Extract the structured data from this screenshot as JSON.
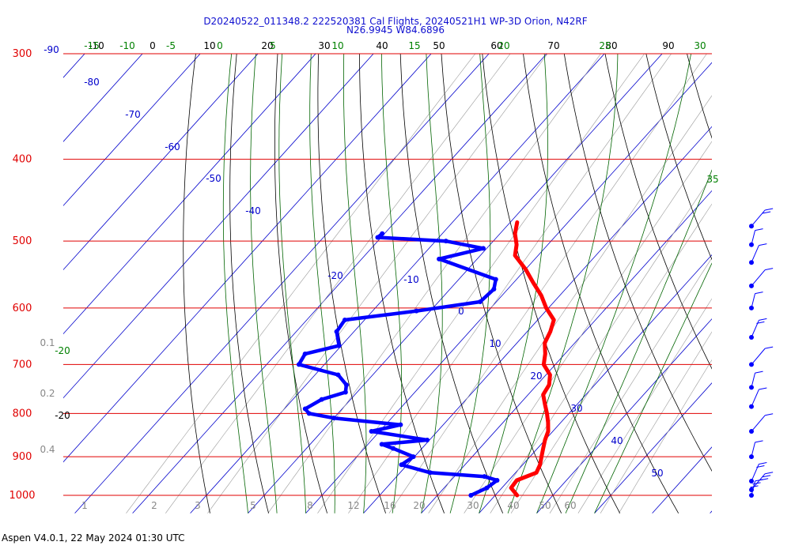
{
  "chart_data": {
    "type": "line",
    "subtype": "skew-t-log-p",
    "title": "D20240522_011348.2 222520381 Cal Flights, 20240521H1 WP-3D Orion, N42RF",
    "subtitle": "N26.9945 W84.6896",
    "footer": "Aspen V4.0.1, 22 May 2024  01:30 UTC",
    "pressure_range": [
      1050,
      300
    ],
    "isobars": [
      300,
      400,
      500,
      600,
      700,
      800,
      900,
      1000
    ],
    "isotherm_labels": [
      "-90",
      "-80",
      "-70",
      "-60",
      "-50",
      "-40",
      "-20",
      "-10",
      "0",
      "10",
      "20",
      "30",
      "40",
      "50"
    ],
    "isotherm_labels_left": [
      "-20",
      "-20"
    ],
    "top_temperature_labels": [
      "-10",
      "0",
      "10",
      "20",
      "30",
      "40",
      "50",
      "60",
      "70",
      "80",
      "90"
    ],
    "top_dewpoint_labels": [
      "-15",
      "-10",
      "-5",
      "0",
      "5",
      "10",
      "15",
      "20",
      "25",
      "30"
    ],
    "side_dewpoint_labels": [
      "35"
    ],
    "mixing_ratio_labels": [
      "1",
      "2",
      "3",
      "5",
      "8",
      "12",
      "16",
      "20",
      "30",
      "40",
      "50",
      "60"
    ],
    "mixing_ratio_left_labels": [
      "0.1",
      "0.2",
      "0.4"
    ],
    "colors": {
      "isobar": "#e00000",
      "temperature": "#ff0000",
      "dewpoint": "#0000ff",
      "isotherm": "#0000cc",
      "dry_adiabat": "#000000",
      "moist_adiabat": "#006400",
      "mixing_ratio": "#999999",
      "wind": "#0000ff"
    },
    "series": [
      {
        "name": "",
        "kind": "temperature",
        "points": [
          [
            1000,
            23.8
          ],
          [
            980,
            21.6
          ],
          [
            960,
            21.4
          ],
          [
            940,
            23.6
          ],
          [
            920,
            23.0
          ],
          [
            900,
            22.0
          ],
          [
            880,
            21.0
          ],
          [
            860,
            20.0
          ],
          [
            840,
            19.2
          ],
          [
            820,
            17.8
          ],
          [
            800,
            16.2
          ],
          [
            780,
            14.4
          ],
          [
            760,
            12.6
          ],
          [
            740,
            12.1
          ],
          [
            720,
            10.7
          ],
          [
            700,
            8.0
          ],
          [
            680,
            6.6
          ],
          [
            660,
            4.8
          ],
          [
            640,
            4.0
          ],
          [
            620,
            2.8
          ],
          [
            600,
            -0.4
          ],
          [
            580,
            -3.2
          ],
          [
            560,
            -6.6
          ],
          [
            540,
            -10.0
          ],
          [
            520,
            -14.0
          ],
          [
            505,
            -15.4
          ],
          [
            490,
            -17.4
          ],
          [
            475,
            -18.8
          ]
        ]
      },
      {
        "name": "",
        "kind": "dewpoint",
        "points": [
          [
            1000,
            15.8
          ],
          [
            980,
            17.4
          ],
          [
            960,
            18.0
          ],
          [
            950,
            15.2
          ],
          [
            940,
            5.2
          ],
          [
            920,
            -1.0
          ],
          [
            900,
            -0.2
          ],
          [
            880,
            -5.0
          ],
          [
            870,
            -7.6
          ],
          [
            860,
            -0.4
          ],
          [
            840,
            -11.4
          ],
          [
            825,
            -7.4
          ],
          [
            810,
            -20.0
          ],
          [
            800,
            -25.0
          ],
          [
            790,
            -26.4
          ],
          [
            770,
            -25.0
          ],
          [
            755,
            -22.0
          ],
          [
            740,
            -23.0
          ],
          [
            720,
            -26.0
          ],
          [
            700,
            -34.4
          ],
          [
            680,
            -35.0
          ],
          [
            665,
            -30.4
          ],
          [
            640,
            -33.0
          ],
          [
            620,
            -33.4
          ],
          [
            605,
            -22.4
          ],
          [
            590,
            -12.8
          ],
          [
            570,
            -12.4
          ],
          [
            555,
            -13.6
          ],
          [
            525,
            -26.6
          ],
          [
            510,
            -20.6
          ],
          [
            500,
            -28.2
          ],
          [
            495,
            -40.6
          ],
          [
            490,
            -40.4
          ]
        ]
      }
    ],
    "wind_barbs": [
      {
        "pressure": 1000,
        "speed_kt": 25
      },
      {
        "pressure": 985,
        "speed_kt": 30
      },
      {
        "pressure": 962,
        "speed_kt": 15
      },
      {
        "pressure": 900,
        "speed_kt": 10
      },
      {
        "pressure": 840,
        "speed_kt": 10
      },
      {
        "pressure": 785,
        "speed_kt": 10
      },
      {
        "pressure": 745,
        "speed_kt": 10
      },
      {
        "pressure": 700,
        "speed_kt": 10
      },
      {
        "pressure": 650,
        "speed_kt": 15
      },
      {
        "pressure": 600,
        "speed_kt": 10
      },
      {
        "pressure": 565,
        "speed_kt": 5
      },
      {
        "pressure": 530,
        "speed_kt": 5
      },
      {
        "pressure": 505,
        "speed_kt": 5
      },
      {
        "pressure": 480,
        "speed_kt": 15
      }
    ]
  }
}
